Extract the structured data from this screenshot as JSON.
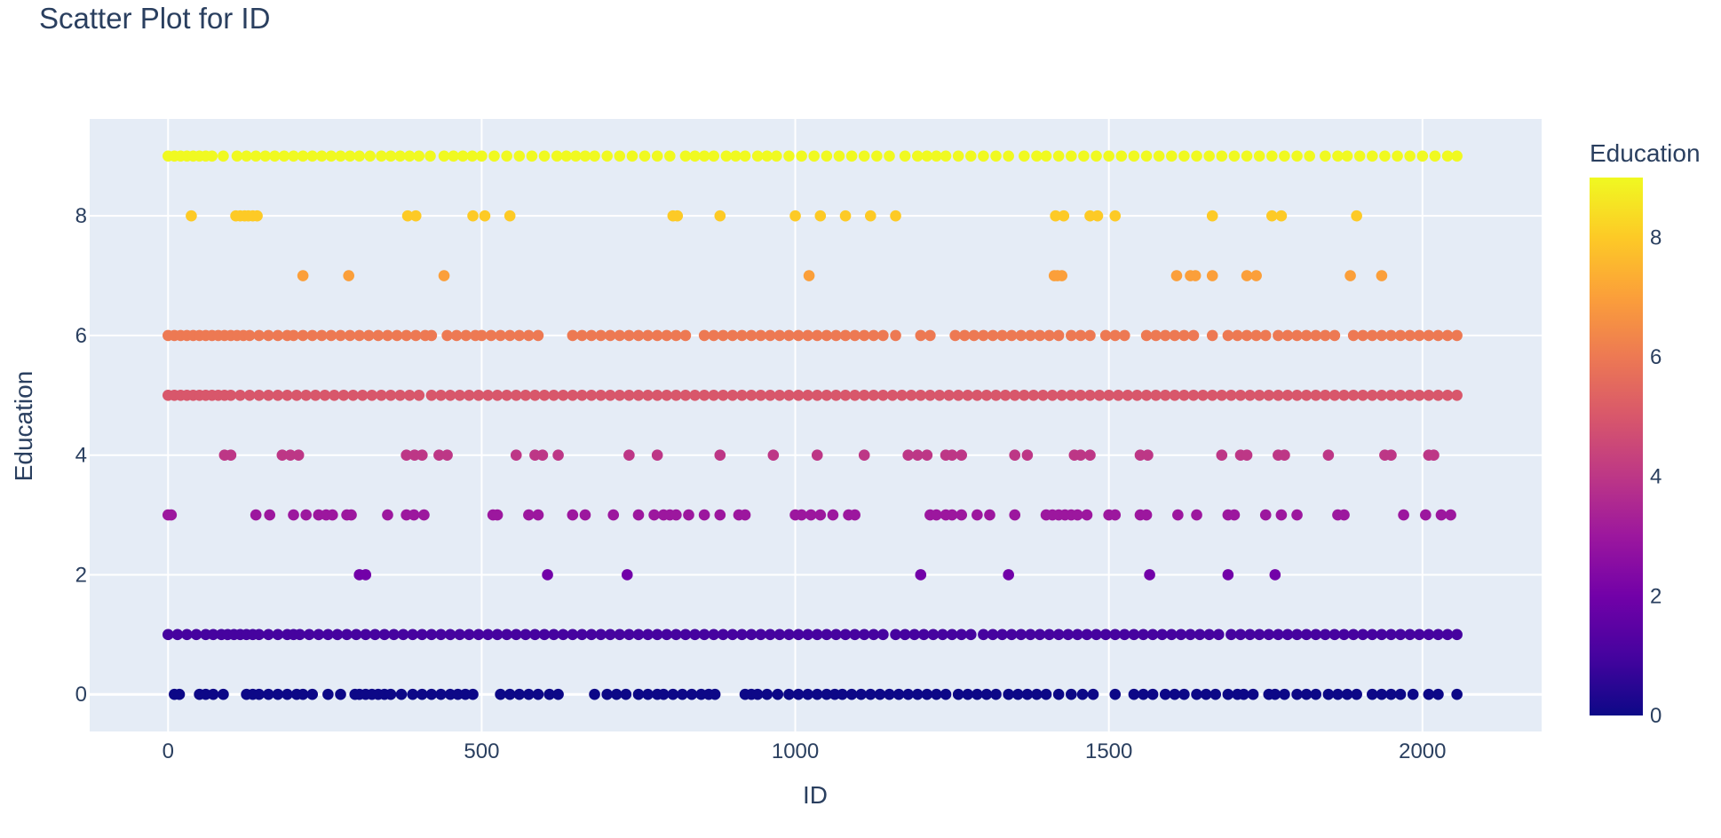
{
  "chart_data": {
    "type": "scatter",
    "title": "Scatter Plot for ID",
    "xlabel": "ID",
    "ylabel": "Education",
    "xlim": [
      -125,
      2190
    ],
    "ylim": [
      -0.62,
      9.62
    ],
    "x_ticks": [
      0,
      500,
      1000,
      1500,
      2000
    ],
    "y_ticks": [
      0,
      2,
      4,
      6,
      8
    ],
    "grid": true,
    "background": "#e5ecf6",
    "colorbar": {
      "title": "Education",
      "range": [
        0,
        9
      ],
      "ticks": [
        0,
        2,
        4,
        6,
        8
      ],
      "colorscale": [
        "#0d0887",
        "#46039f",
        "#7201a8",
        "#9c179e",
        "#bd3786",
        "#d8576b",
        "#ed7953",
        "#fb9f3a",
        "#fdca26",
        "#f0f921"
      ]
    },
    "series": [
      {
        "education": 9,
        "x": [
          0,
          10,
          20,
          30,
          40,
          50,
          60,
          70,
          88,
          110,
          125,
          140,
          155,
          170,
          185,
          200,
          215,
          230,
          245,
          260,
          275,
          290,
          305,
          322,
          340,
          355,
          370,
          385,
          400,
          418,
          440,
          455,
          470,
          485,
          500,
          520,
          540,
          560,
          580,
          600,
          620,
          635,
          650,
          665,
          680,
          700,
          720,
          740,
          760,
          780,
          800,
          825,
          840,
          855,
          870,
          890,
          905,
          920,
          940,
          955,
          970,
          990,
          1010,
          1030,
          1050,
          1070,
          1090,
          1110,
          1130,
          1150,
          1175,
          1195,
          1210,
          1225,
          1240,
          1260,
          1280,
          1300,
          1320,
          1340,
          1365,
          1385,
          1400,
          1420,
          1440,
          1460,
          1480,
          1500,
          1520,
          1540,
          1560,
          1580,
          1600,
          1620,
          1640,
          1660,
          1680,
          1700,
          1720,
          1740,
          1760,
          1780,
          1800,
          1820,
          1845,
          1865,
          1880,
          1900,
          1920,
          1940,
          1960,
          1980,
          2000,
          2020,
          2040,
          2055
        ]
      },
      {
        "education": 8,
        "x": [
          37,
          108,
          115,
          122,
          128,
          135,
          142,
          382,
          395,
          486,
          505,
          545,
          805,
          812,
          880,
          1000,
          1040,
          1080,
          1120,
          1160,
          1415,
          1428,
          1470,
          1482,
          1510,
          1665,
          1760,
          1775,
          1895
        ]
      },
      {
        "education": 7,
        "x": [
          215,
          288,
          440,
          1022,
          1413,
          1418,
          1425,
          1608,
          1630,
          1638,
          1665,
          1720,
          1735,
          1885,
          1935
        ]
      },
      {
        "education": 6,
        "x": [
          0,
          10,
          20,
          30,
          40,
          50,
          60,
          70,
          80,
          90,
          100,
          110,
          120,
          130,
          145,
          160,
          175,
          190,
          200,
          215,
          230,
          245,
          260,
          275,
          290,
          305,
          320,
          335,
          350,
          365,
          380,
          395,
          410,
          420,
          445,
          460,
          475,
          490,
          500,
          515,
          530,
          545,
          560,
          575,
          590,
          645,
          660,
          675,
          690,
          705,
          720,
          735,
          750,
          765,
          780,
          795,
          810,
          825,
          855,
          870,
          885,
          900,
          915,
          930,
          945,
          960,
          975,
          990,
          1005,
          1020,
          1035,
          1050,
          1065,
          1080,
          1095,
          1110,
          1125,
          1140,
          1160,
          1200,
          1215,
          1255,
          1270,
          1285,
          1300,
          1315,
          1330,
          1345,
          1360,
          1375,
          1390,
          1405,
          1420,
          1440,
          1455,
          1470,
          1495,
          1510,
          1525,
          1560,
          1575,
          1590,
          1605,
          1620,
          1635,
          1665,
          1690,
          1705,
          1720,
          1735,
          1750,
          1770,
          1785,
          1800,
          1815,
          1830,
          1845,
          1860,
          1890,
          1905,
          1920,
          1935,
          1950,
          1965,
          1980,
          1995,
          2010,
          2025,
          2040,
          2055
        ]
      },
      {
        "education": 5,
        "x": [
          0,
          10,
          20,
          30,
          40,
          50,
          60,
          70,
          80,
          90,
          100,
          115,
          130,
          145,
          160,
          175,
          190,
          205,
          220,
          235,
          250,
          265,
          280,
          295,
          310,
          325,
          340,
          355,
          370,
          385,
          400,
          420,
          435,
          450,
          465,
          480,
          495,
          510,
          525,
          540,
          555,
          570,
          585,
          600,
          615,
          630,
          645,
          660,
          675,
          690,
          705,
          720,
          735,
          750,
          765,
          780,
          795,
          810,
          825,
          840,
          855,
          870,
          885,
          900,
          915,
          930,
          945,
          960,
          975,
          990,
          1005,
          1020,
          1035,
          1050,
          1065,
          1080,
          1095,
          1110,
          1125,
          1140,
          1155,
          1170,
          1185,
          1200,
          1215,
          1230,
          1245,
          1260,
          1275,
          1290,
          1305,
          1320,
          1335,
          1350,
          1365,
          1380,
          1395,
          1410,
          1425,
          1440,
          1455,
          1470,
          1485,
          1500,
          1515,
          1530,
          1545,
          1560,
          1575,
          1590,
          1605,
          1620,
          1635,
          1650,
          1665,
          1680,
          1695,
          1710,
          1725,
          1740,
          1755,
          1770,
          1785,
          1800,
          1815,
          1830,
          1845,
          1860,
          1875,
          1890,
          1905,
          1920,
          1935,
          1950,
          1965,
          1980,
          1995,
          2010,
          2025,
          2040,
          2055
        ]
      },
      {
        "education": 4,
        "x": [
          90,
          100,
          182,
          195,
          208,
          380,
          393,
          405,
          432,
          445,
          555,
          585,
          597,
          622,
          735,
          780,
          880,
          965,
          1035,
          1110,
          1180,
          1195,
          1210,
          1240,
          1250,
          1265,
          1350,
          1370,
          1445,
          1455,
          1470,
          1550,
          1562,
          1680,
          1710,
          1720,
          1770,
          1780,
          1850,
          1940,
          1950,
          2010,
          2018
        ]
      },
      {
        "education": 3,
        "x": [
          0,
          5,
          140,
          162,
          200,
          220,
          240,
          252,
          262,
          285,
          292,
          350,
          380,
          392,
          408,
          518,
          525,
          575,
          590,
          645,
          665,
          710,
          750,
          775,
          790,
          800,
          810,
          830,
          855,
          880,
          910,
          920,
          1000,
          1010,
          1025,
          1040,
          1060,
          1085,
          1095,
          1215,
          1225,
          1240,
          1250,
          1265,
          1290,
          1310,
          1350,
          1400,
          1410,
          1420,
          1430,
          1440,
          1450,
          1465,
          1500,
          1510,
          1550,
          1560,
          1610,
          1640,
          1690,
          1700,
          1750,
          1775,
          1800,
          1865,
          1875,
          1970,
          2005,
          2030,
          2045
        ]
      },
      {
        "education": 2,
        "x": [
          305,
          315,
          605,
          732,
          1200,
          1340,
          1565,
          1690,
          1765
        ]
      },
      {
        "education": 1,
        "x": [
          0,
          15,
          30,
          45,
          60,
          72,
          85,
          95,
          105,
          115,
          125,
          135,
          145,
          160,
          175,
          190,
          200,
          210,
          225,
          240,
          255,
          270,
          285,
          300,
          315,
          330,
          345,
          360,
          375,
          390,
          405,
          420,
          435,
          450,
          465,
          480,
          495,
          510,
          525,
          540,
          555,
          570,
          585,
          600,
          615,
          630,
          645,
          660,
          675,
          690,
          705,
          720,
          735,
          750,
          765,
          780,
          795,
          810,
          825,
          840,
          855,
          870,
          885,
          900,
          915,
          930,
          945,
          960,
          975,
          990,
          1005,
          1020,
          1035,
          1050,
          1065,
          1080,
          1095,
          1110,
          1125,
          1140,
          1160,
          1175,
          1190,
          1205,
          1220,
          1235,
          1250,
          1265,
          1280,
          1300,
          1315,
          1330,
          1345,
          1360,
          1375,
          1390,
          1405,
          1420,
          1435,
          1450,
          1465,
          1480,
          1495,
          1510,
          1525,
          1540,
          1555,
          1570,
          1585,
          1600,
          1615,
          1630,
          1645,
          1660,
          1675,
          1695,
          1710,
          1725,
          1740,
          1755,
          1770,
          1785,
          1800,
          1815,
          1830,
          1845,
          1860,
          1875,
          1890,
          1905,
          1920,
          1935,
          1950,
          1965,
          1980,
          1995,
          2010,
          2025,
          2040,
          2055
        ]
      },
      {
        "education": 0,
        "x": [
          10,
          18,
          50,
          60,
          72,
          88,
          125,
          135,
          145,
          160,
          175,
          190,
          205,
          215,
          230,
          255,
          275,
          298,
          305,
          315,
          325,
          335,
          345,
          355,
          372,
          390,
          405,
          420,
          435,
          450,
          462,
          474,
          486,
          530,
          545,
          560,
          575,
          590,
          608,
          622,
          680,
          700,
          715,
          730,
          750,
          765,
          780,
          790,
          805,
          820,
          835,
          850,
          862,
          872,
          920,
          930,
          940,
          955,
          972,
          990,
          1005,
          1020,
          1035,
          1050,
          1063,
          1075,
          1090,
          1105,
          1120,
          1135,
          1150,
          1165,
          1180,
          1195,
          1210,
          1225,
          1240,
          1260,
          1275,
          1290,
          1305,
          1320,
          1340,
          1355,
          1370,
          1385,
          1400,
          1420,
          1440,
          1458,
          1475,
          1510,
          1540,
          1555,
          1570,
          1590,
          1605,
          1620,
          1640,
          1655,
          1670,
          1690,
          1705,
          1715,
          1730,
          1755,
          1765,
          1780,
          1800,
          1815,
          1830,
          1850,
          1865,
          1880,
          1895,
          1920,
          1935,
          1950,
          1965,
          1985,
          2010,
          2025,
          2055
        ]
      }
    ]
  }
}
